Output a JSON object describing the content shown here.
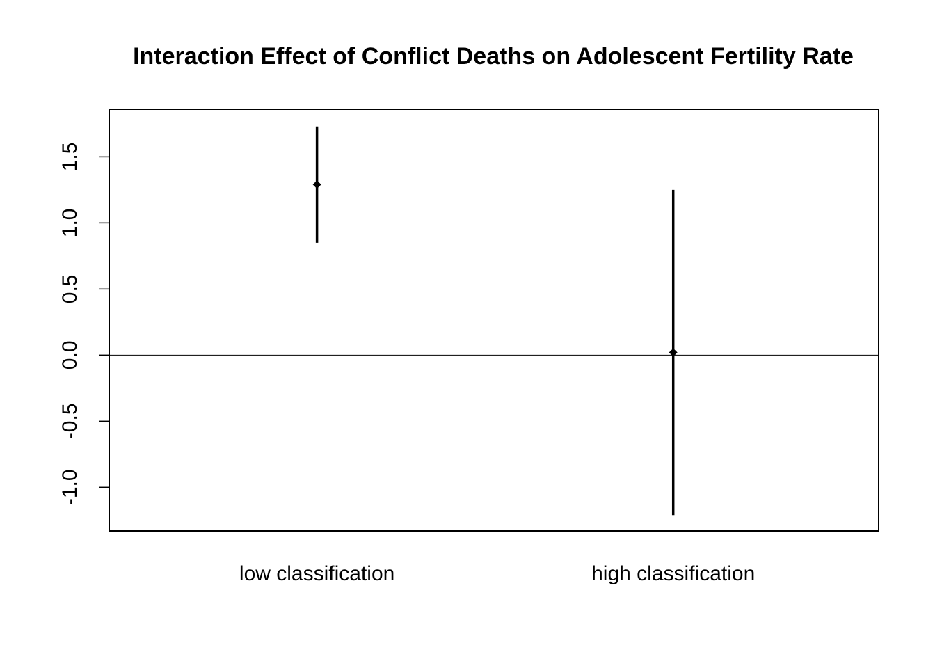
{
  "chart_data": {
    "type": "errorbar",
    "title": "Interaction Effect of Conflict Deaths on Adolescent Fertility Rate",
    "xlabel": "",
    "ylabel": "",
    "categories": [
      "low classification",
      "high classification"
    ],
    "estimates": [
      1.29,
      0.02
    ],
    "lower": [
      0.85,
      -1.21
    ],
    "upper": [
      1.73,
      1.25
    ],
    "ylim": [
      -1.33,
      1.86
    ],
    "yticks": [
      -1.0,
      -0.5,
      0.0,
      0.5,
      1.0,
      1.5
    ],
    "ytick_labels": [
      "-1.0",
      "-0.5",
      "0.0",
      "0.5",
      "1.0",
      "1.5"
    ],
    "reference_line": 0.0,
    "grid": false,
    "legend": "none",
    "colors": {
      "marks": "#000000",
      "axes": "#000000"
    }
  }
}
